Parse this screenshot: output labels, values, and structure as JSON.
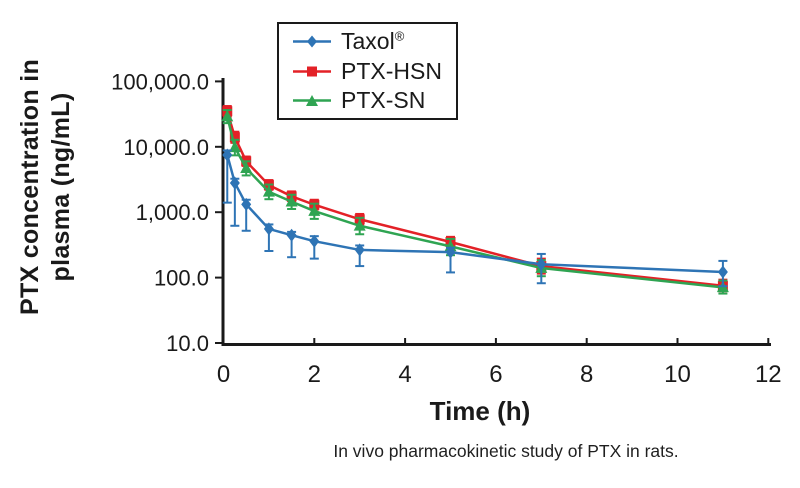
{
  "figure": {
    "y_axis_title_line1": "PTX concentration in",
    "y_axis_title_line2": "plasma (ng/mL)",
    "x_axis_title": "Time (h)",
    "caption": "In vivo pharmacokinetic study of PTX in rats.",
    "background_color": "#ffffff",
    "ink_color": "#1a1a1a"
  },
  "legend": {
    "entries": [
      {
        "label": "Taxol",
        "suffix": "®",
        "marker": "diamond"
      },
      {
        "label": "PTX-HSN",
        "suffix": "",
        "marker": "square"
      },
      {
        "label": "PTX-SN",
        "suffix": "",
        "marker": "triangle"
      }
    ]
  },
  "chart_data": {
    "type": "line",
    "title": "",
    "xlabel": "Time (h)",
    "ylabel": "PTX concentration in plasma (ng/mL)",
    "x_scale": "linear",
    "y_scale": "log",
    "xlim": [
      0,
      12
    ],
    "ylim": [
      10,
      100000
    ],
    "grid": false,
    "legend_position": "top-center-inside",
    "x_ticks": [
      0,
      2,
      4,
      6,
      8,
      10,
      12
    ],
    "y_tick_values": [
      100000,
      10000,
      1000,
      100,
      10
    ],
    "y_tick_labels": [
      "100,000.0",
      "10,000.0",
      "1,000.0",
      "100.0",
      "10.0"
    ],
    "x": [
      0.083,
      0.25,
      0.5,
      1,
      1.5,
      2,
      3,
      5,
      7,
      11
    ],
    "x_unit": "h",
    "y_unit": "ng/mL",
    "draw_order": [
      1,
      2,
      0
    ],
    "series": [
      {
        "name": "Taxol®",
        "marker": "diamond",
        "color": "#2e74b5",
        "values": [
          7500,
          2800,
          1320,
          555,
          445,
          360,
          265,
          245,
          160,
          122
        ],
        "err_lo": [
          1400,
          620,
          520,
          255,
          205,
          195,
          150,
          120,
          82,
          74
        ],
        "err_hi": [
          8800,
          3250,
          1550,
          650,
          500,
          430,
          310,
          285,
          230,
          180
        ]
      },
      {
        "name": "PTX-HSN",
        "marker": "square",
        "color": "#e32127",
        "values": [
          35000,
          14000,
          6000,
          2600,
          1750,
          1300,
          780,
          350,
          150,
          75
        ],
        "err_lo": [
          29000,
          11500,
          5100,
          2200,
          1480,
          1100,
          650,
          295,
          115,
          62
        ],
        "err_hi": [
          42000,
          17000,
          7100,
          3100,
          2080,
          1550,
          940,
          420,
          195,
          93
        ]
      },
      {
        "name": "PTX-SN",
        "marker": "triangle",
        "color": "#2fa452",
        "values": [
          29000,
          9800,
          4700,
          2050,
          1450,
          1040,
          620,
          300,
          140,
          71
        ],
        "err_lo": [
          23000,
          7400,
          3650,
          1580,
          1120,
          790,
          460,
          220,
          105,
          57
        ],
        "err_hi": [
          36500,
          12800,
          6000,
          2650,
          1850,
          1350,
          820,
          390,
          185,
          90
        ]
      }
    ]
  }
}
